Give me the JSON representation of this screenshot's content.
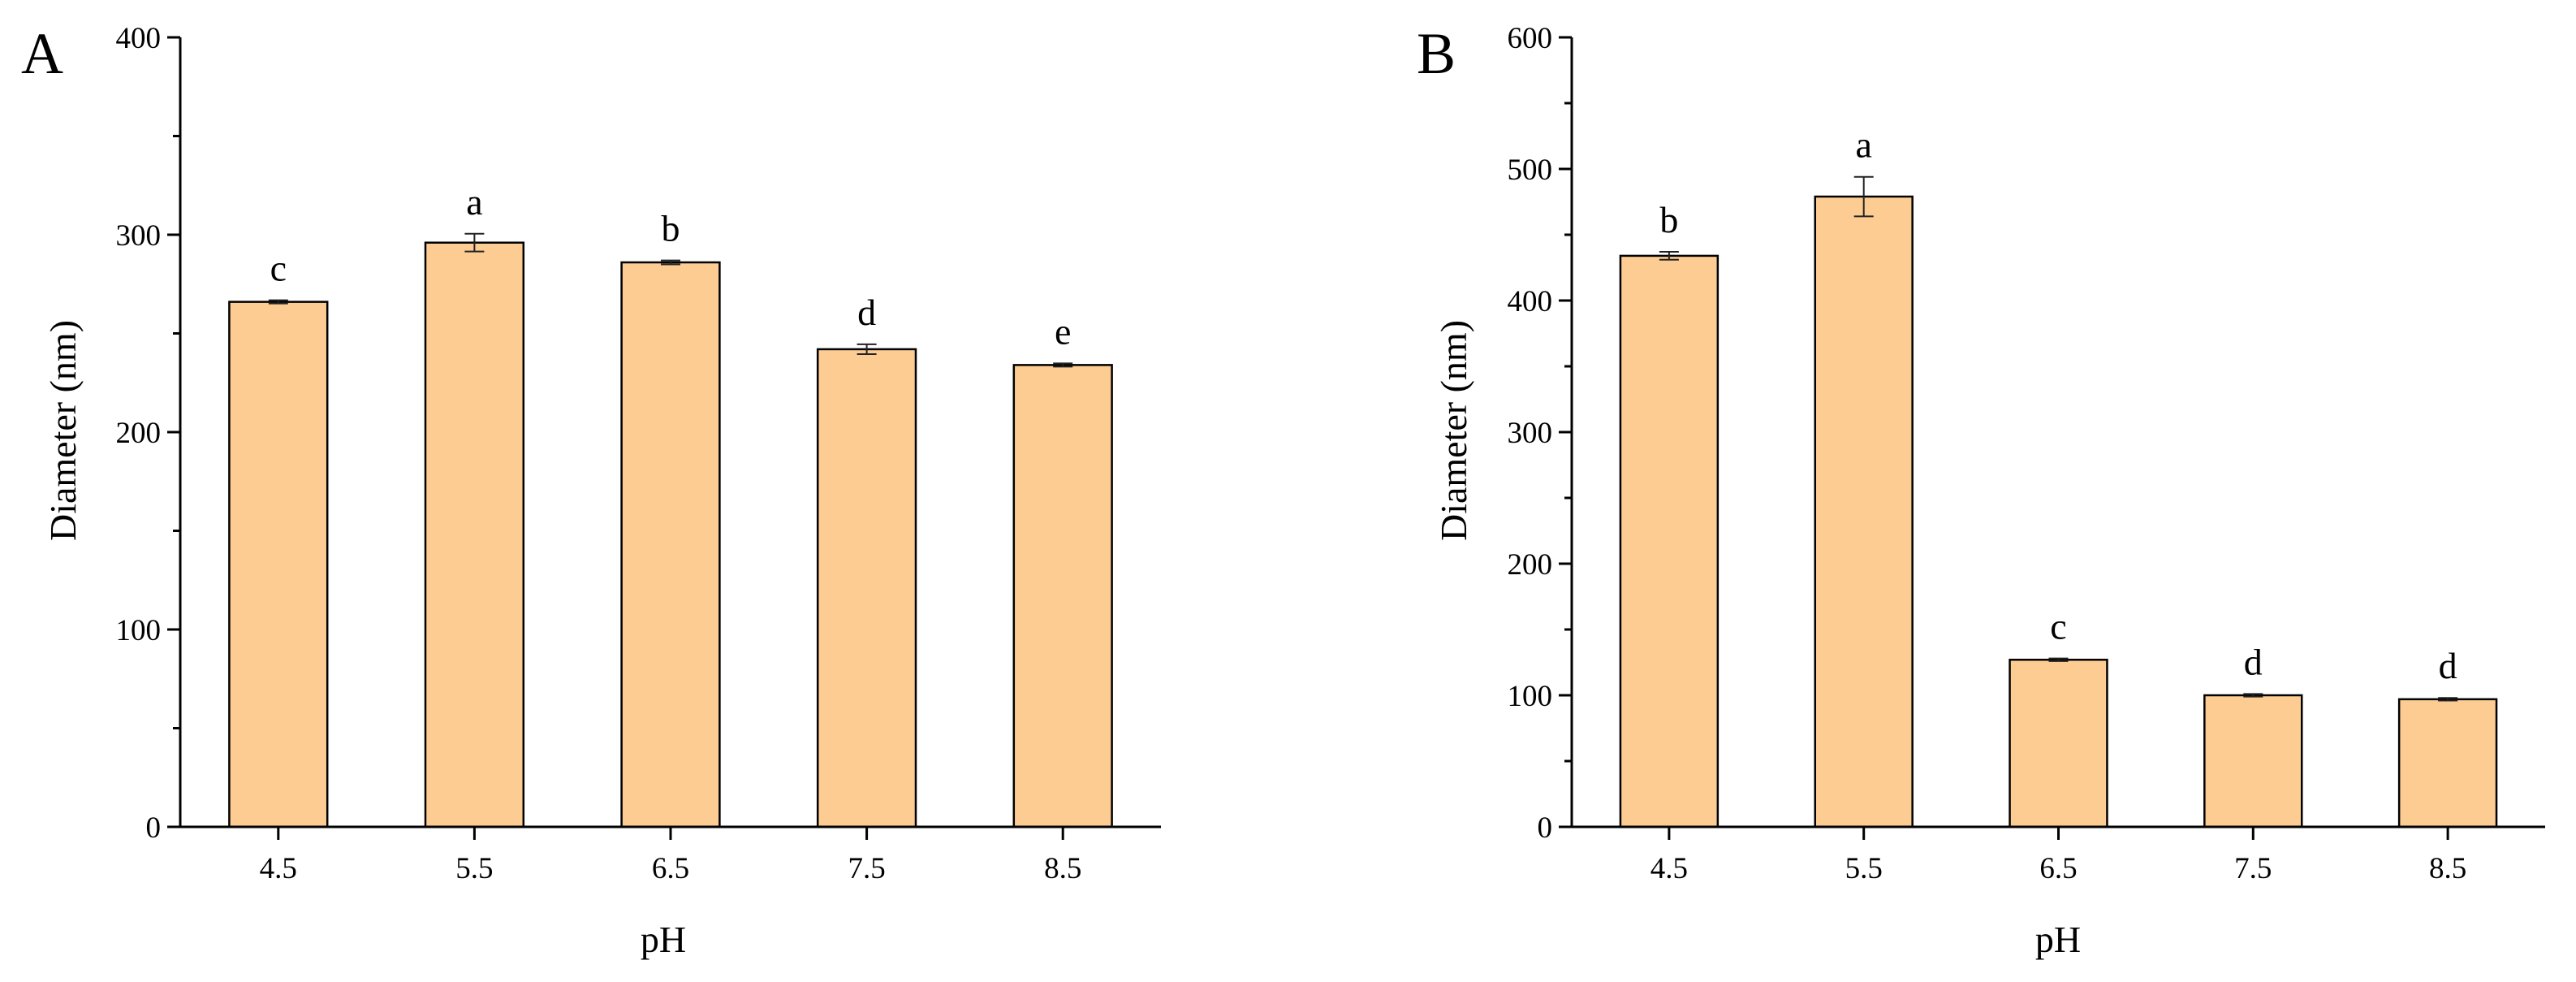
{
  "panels": [
    {
      "panel_label": "A",
      "bar_color": "#FDCC92",
      "chart_data": {
        "type": "bar",
        "title": "",
        "xlabel": "pH",
        "ylabel": "Diameter (nm)",
        "categories": [
          "4.5",
          "5.5",
          "6.5",
          "7.5",
          "8.5"
        ],
        "values": [
          266,
          296,
          286,
          242,
          234
        ],
        "errors": [
          0.8,
          4.5,
          1.0,
          2.5,
          0.8
        ],
        "significance": [
          "c",
          "a",
          "b",
          "d",
          "e"
        ],
        "ylim": [
          0,
          400
        ],
        "yticks": [
          0,
          100,
          200,
          300,
          400
        ],
        "y_minor_step": 50,
        "grid": false,
        "legend": "none"
      }
    },
    {
      "panel_label": "B",
      "bar_color": "#FDCC92",
      "chart_data": {
        "type": "bar",
        "title": "",
        "xlabel": "pH",
        "ylabel": "Diameter (nm)",
        "categories": [
          "4.5",
          "5.5",
          "6.5",
          "7.5",
          "8.5"
        ],
        "values": [
          434,
          479,
          127,
          100,
          97
        ],
        "errors": [
          3,
          15,
          1,
          1,
          1
        ],
        "significance": [
          "b",
          "a",
          "c",
          "d",
          "d"
        ],
        "ylim": [
          0,
          600
        ],
        "yticks": [
          0,
          100,
          200,
          300,
          400,
          500,
          600
        ],
        "y_minor_step": 50,
        "grid": false,
        "legend": "none"
      }
    }
  ]
}
